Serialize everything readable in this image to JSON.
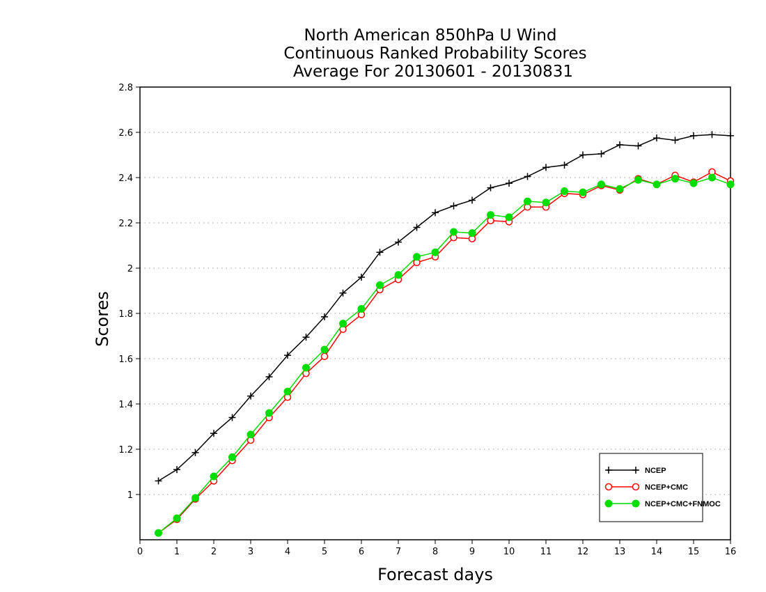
{
  "chart_data": {
    "type": "line",
    "title": [
      "North American 850hPa U Wind",
      "Continuous Ranked Probability Scores",
      "Average For 20130601 - 20130831"
    ],
    "xlabel": "Forecast days",
    "ylabel": "Scores",
    "xlim": [
      0,
      16
    ],
    "ylim": [
      0.8,
      2.8
    ],
    "xticks": [
      0,
      1,
      2,
      3,
      4,
      5,
      6,
      7,
      8,
      9,
      10,
      11,
      12,
      13,
      14,
      15,
      16
    ],
    "yticks": [
      1,
      1.2,
      1.4,
      1.6,
      1.8,
      2,
      2.2,
      2.4,
      2.6,
      2.8
    ],
    "ytick_labels": [
      "1",
      "1.2",
      "1.4",
      "1.6",
      "1.8",
      "2",
      "2.2",
      "2.4",
      "2.6",
      "2.8"
    ],
    "grid": "horizontal dotted",
    "legend_position": "bottom-right",
    "x": [
      0.5,
      1,
      1.5,
      2,
      2.5,
      3,
      3.5,
      4,
      4.5,
      5,
      5.5,
      6,
      6.5,
      7,
      7.5,
      8,
      8.5,
      9,
      9.5,
      10,
      10.5,
      11,
      11.5,
      12,
      12.5,
      13,
      13.5,
      14,
      14.5,
      15,
      15.5,
      16
    ],
    "series": [
      {
        "name": "NCEP",
        "color": "#000000",
        "marker": "plus",
        "values": [
          1.06,
          1.11,
          1.185,
          1.27,
          1.34,
          1.435,
          1.52,
          1.615,
          1.695,
          1.785,
          1.89,
          1.96,
          2.07,
          2.115,
          2.18,
          2.245,
          2.275,
          2.3,
          2.355,
          2.375,
          2.405,
          2.445,
          2.455,
          2.5,
          2.505,
          2.545,
          2.54,
          2.575,
          2.565,
          2.585,
          2.59,
          2.585
        ]
      },
      {
        "name": "NCEP+CMC",
        "color": "#ff0000",
        "marker": "open-circle",
        "values": [
          0.83,
          0.89,
          0.98,
          1.06,
          1.15,
          1.24,
          1.34,
          1.43,
          1.535,
          1.61,
          1.73,
          1.795,
          1.905,
          1.95,
          2.025,
          2.05,
          2.135,
          2.13,
          2.21,
          2.205,
          2.27,
          2.27,
          2.33,
          2.325,
          2.365,
          2.345,
          2.395,
          2.37,
          2.41,
          2.38,
          2.425,
          2.385
        ]
      },
      {
        "name": "NCEP+CMC+FNMOC",
        "color": "#00dd00",
        "marker": "filled-circle",
        "values": [
          0.83,
          0.895,
          0.985,
          1.08,
          1.165,
          1.265,
          1.36,
          1.455,
          1.56,
          1.64,
          1.755,
          1.82,
          1.925,
          1.97,
          2.05,
          2.07,
          2.16,
          2.155,
          2.235,
          2.225,
          2.295,
          2.29,
          2.34,
          2.335,
          2.37,
          2.35,
          2.39,
          2.37,
          2.395,
          2.375,
          2.4,
          2.37
        ]
      }
    ]
  }
}
